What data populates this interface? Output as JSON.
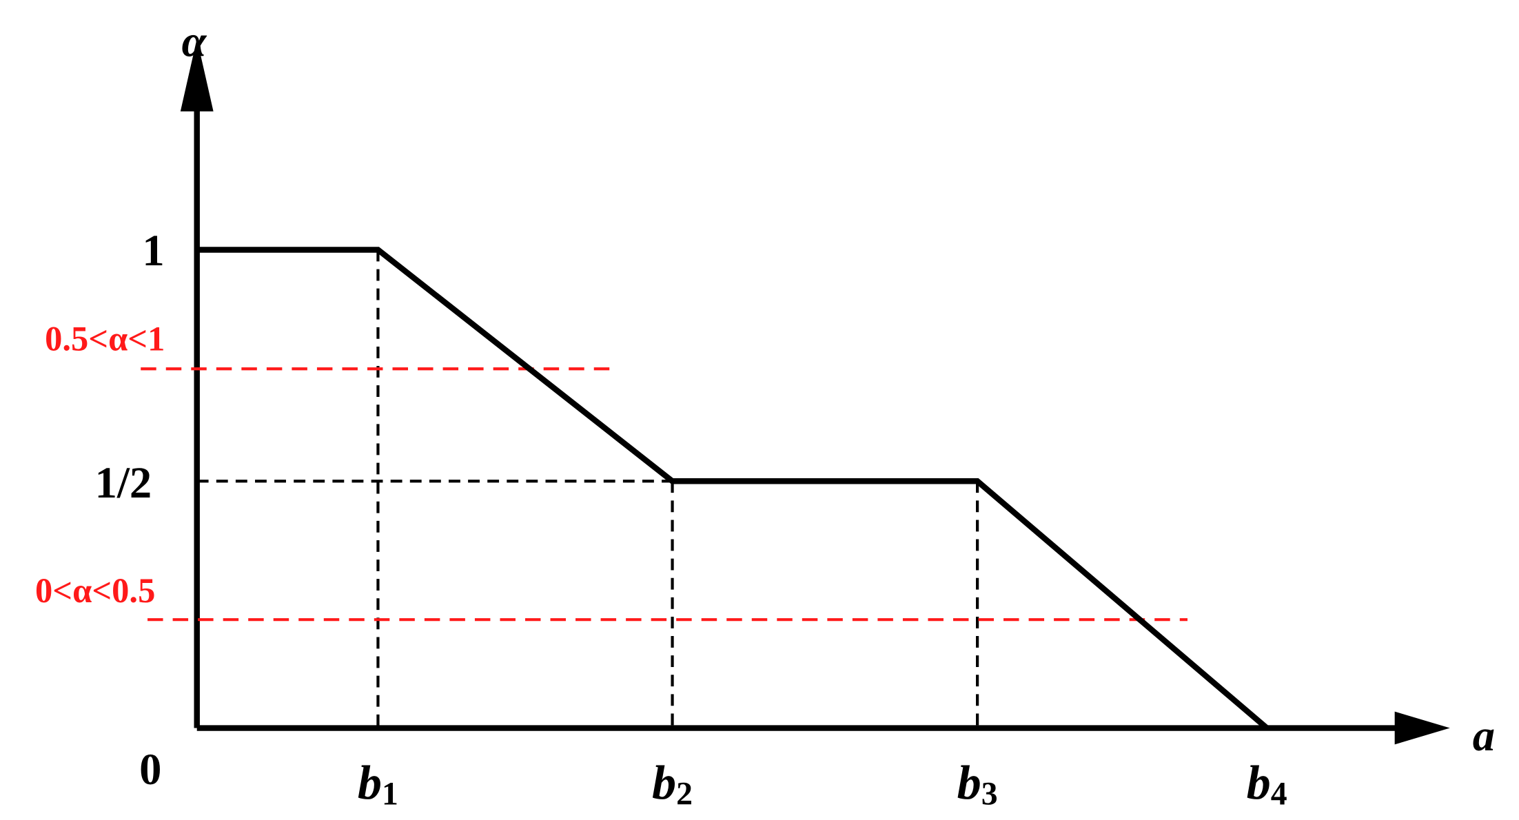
{
  "axes": {
    "y_label": "α",
    "x_label": "a",
    "origin": "0"
  },
  "y_levels": [
    "1",
    "1/2"
  ],
  "x_points": [
    {
      "base": "b",
      "sub": "1"
    },
    {
      "base": "b",
      "sub": "2"
    },
    {
      "base": "b",
      "sub": "3"
    },
    {
      "base": "b",
      "sub": "4"
    }
  ],
  "cuts": [
    "0.5<α<1",
    "0<α<0.5"
  ]
}
